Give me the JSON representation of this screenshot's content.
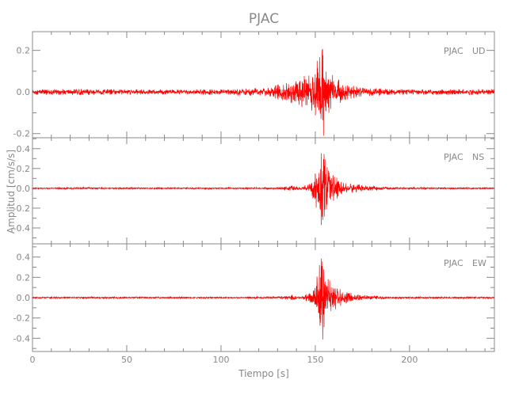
{
  "chart_data": {
    "type": "line",
    "title": "PJAC",
    "xlabel": "Tiempo [s]",
    "ylabel": "Amplitud [cm/s/s]",
    "xlim": [
      0,
      245
    ],
    "xticks": [
      0,
      50,
      100,
      150,
      200
    ],
    "xtick_labels": [
      "0",
      "50",
      "100",
      "150",
      "200"
    ],
    "grid": false,
    "line_color": "#ff0000",
    "axis_color": "#888888",
    "panels": [
      {
        "station": "PJAC",
        "component": "UD",
        "ylim": [
          -0.22,
          0.29
        ],
        "yticks": [
          -0.2,
          0.0,
          0.2
        ],
        "ytick_labels": [
          "-0.2",
          "0.0",
          "0.2"
        ],
        "envelope_time": [
          0,
          30,
          60,
          100,
          125,
          135,
          142,
          148,
          152,
          153.5,
          155,
          158,
          165,
          175,
          200,
          245
        ],
        "envelope_amp": [
          0.014,
          0.014,
          0.012,
          0.013,
          0.02,
          0.05,
          0.07,
          0.09,
          0.17,
          0.27,
          0.17,
          0.09,
          0.04,
          0.02,
          0.012,
          0.014
        ]
      },
      {
        "station": "PJAC",
        "component": "NS",
        "ylim": [
          -0.56,
          0.51
        ],
        "yticks": [
          -0.4,
          -0.2,
          0.0,
          0.2,
          0.4
        ],
        "ytick_labels": [
          "-0.4",
          "-0.2",
          "0.0",
          "0.2",
          "0.4"
        ],
        "envelope_time": [
          0,
          130,
          135,
          138,
          142,
          148,
          152,
          153.5,
          155,
          158,
          165,
          175,
          190,
          245
        ],
        "envelope_amp": [
          0.008,
          0.008,
          0.02,
          0.03,
          0.01,
          0.06,
          0.3,
          0.5,
          0.3,
          0.15,
          0.06,
          0.03,
          0.01,
          0.008
        ]
      },
      {
        "station": "PJAC",
        "component": "EW",
        "ylim": [
          -0.53,
          0.53
        ],
        "yticks": [
          -0.4,
          -0.2,
          0.0,
          0.2,
          0.4
        ],
        "ytick_labels": [
          "-0.4",
          "-0.2",
          "0.0",
          "0.2",
          "0.4"
        ],
        "envelope_time": [
          0,
          130,
          136,
          138,
          142,
          146,
          149,
          152,
          153.5,
          155,
          158,
          165,
          175,
          190,
          245
        ],
        "envelope_amp": [
          0.008,
          0.008,
          0.02,
          0.025,
          0.01,
          0.04,
          0.07,
          0.3,
          0.48,
          0.3,
          0.15,
          0.06,
          0.025,
          0.01,
          0.008
        ]
      }
    ]
  }
}
